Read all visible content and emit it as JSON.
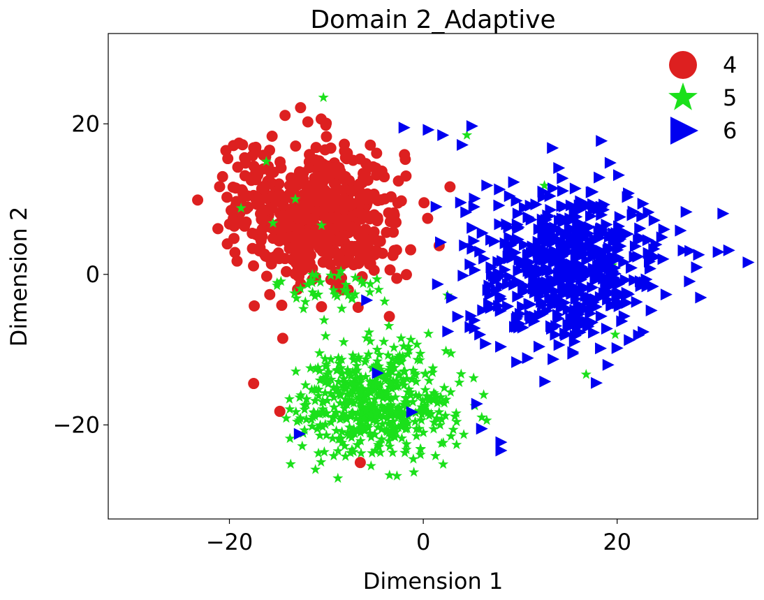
{
  "chart_data": {
    "type": "scatter",
    "title": "Domain 2_Adaptive",
    "xlabel": "Dimension 1",
    "ylabel": "Dimension 2",
    "xlim": [
      -32.5,
      34.5
    ],
    "ylim": [
      -32.5,
      32
    ],
    "xticks": [
      -20,
      0,
      20
    ],
    "yticks": [
      -20,
      0,
      20
    ],
    "xtick_labels": [
      "−20",
      "0",
      "20"
    ],
    "ytick_labels": [
      "−20",
      "0",
      "20"
    ],
    "grid": false,
    "legend_position": "top-right",
    "series": [
      {
        "name": "4",
        "marker": "circle",
        "color": "#dd2020",
        "clusters": [
          {
            "cx": -10,
            "cy": 8,
            "sx": 5.5,
            "sy": 6.5,
            "n": 520
          },
          {
            "cx": -17,
            "cy": 10,
            "sx": 3,
            "sy": 6,
            "n": 70
          }
        ],
        "outliers": [
          [
            -17.5,
            -14.5
          ],
          [
            -14.8,
            -18.2
          ],
          [
            -6.5,
            -25
          ],
          [
            -10.5,
            -4.3
          ],
          [
            -3.5,
            -5.6
          ],
          [
            -14.5,
            -8.5
          ]
        ]
      },
      {
        "name": "5",
        "marker": "star",
        "color": "#1be01b",
        "clusters": [
          {
            "cx": -5,
            "cy": -17,
            "sx": 5.5,
            "sy": 5,
            "n": 520
          },
          {
            "cx": -10,
            "cy": -2,
            "sx": 4,
            "sy": 2.5,
            "n": 40
          }
        ],
        "outliers": [
          [
            -10.3,
            23.5
          ],
          [
            -16.2,
            15
          ],
          [
            -13.2,
            10
          ],
          [
            -18.8,
            8.8
          ],
          [
            -15.5,
            6.8
          ],
          [
            -10.5,
            6.5
          ],
          [
            12.5,
            11.8
          ],
          [
            4.5,
            18.5
          ],
          [
            2.5,
            -2.8
          ],
          [
            16.8,
            -13.3
          ],
          [
            19.5,
            1.2
          ],
          [
            19.8,
            -8
          ]
        ]
      },
      {
        "name": "6",
        "marker": "triangle-right",
        "color": "#0000f0",
        "clusters": [
          {
            "cx": 15,
            "cy": 1,
            "sx": 7,
            "sy": 7,
            "n": 560
          }
        ],
        "outliers": [
          [
            -2,
            19.5
          ],
          [
            0.5,
            19.2
          ],
          [
            5,
            19.7
          ],
          [
            4,
            17.2
          ],
          [
            2,
            18.5
          ],
          [
            -1.2,
            -18.3
          ],
          [
            5.5,
            -17.2
          ],
          [
            6,
            -20.5
          ],
          [
            8,
            -22.3
          ],
          [
            8,
            -23.4
          ],
          [
            -12.8,
            -21.2
          ],
          [
            31.5,
            3.2
          ],
          [
            33.5,
            1.6
          ]
        ]
      }
    ]
  }
}
